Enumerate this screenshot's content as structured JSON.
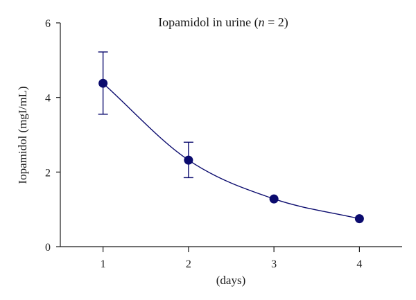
{
  "chart_data": {
    "type": "line",
    "title": "Iopamidol in urine (",
    "title_italic": "n",
    "title_suffix": " = 2)",
    "xlabel": "(days)",
    "ylabel": "Iopamidol (mgI/mL)",
    "x": [
      1,
      2,
      3,
      4
    ],
    "x_ticks": [
      1,
      2,
      3,
      4
    ],
    "xlim": [
      0.5,
      4.5
    ],
    "y_ticks": [
      0,
      2,
      4,
      6
    ],
    "ylim": [
      0,
      6
    ],
    "grid": false,
    "color": "#0b0b6e",
    "series": [
      {
        "values": [
          4.38,
          2.32,
          1.28,
          0.75
        ],
        "error_low": [
          3.55,
          1.85,
          null,
          null
        ],
        "error_high": [
          5.22,
          2.8,
          null,
          null
        ]
      }
    ]
  }
}
